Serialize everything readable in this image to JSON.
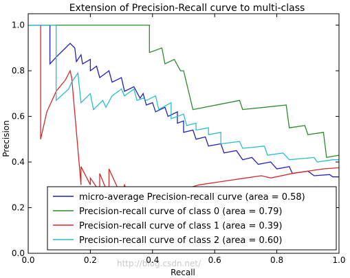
{
  "chart_data": {
    "type": "line",
    "title": "Extension of Precision-Recall curve to multi-class",
    "xlabel": "Recall",
    "ylabel": "Precision",
    "xlim": [
      0.0,
      1.0
    ],
    "ylim": [
      0.0,
      1.05
    ],
    "x_ticks": [
      "0.0",
      "0.2",
      "0.4",
      "0.6",
      "0.8",
      "1.0"
    ],
    "y_ticks": [
      "0.0",
      "0.2",
      "0.4",
      "0.6",
      "0.8",
      "1.0"
    ],
    "grid": false,
    "legend_position": "lower-right",
    "series": [
      {
        "name": "micro-average Precision-recall curve (area = 0.58)",
        "color": "#1f1fbf",
        "points": [
          [
            0.0,
            1.0
          ],
          [
            0.07,
            1.0
          ],
          [
            0.07,
            0.83
          ],
          [
            0.09,
            0.86
          ],
          [
            0.12,
            0.9
          ],
          [
            0.135,
            0.92
          ],
          [
            0.15,
            0.9
          ],
          [
            0.155,
            0.84
          ],
          [
            0.17,
            0.87
          ],
          [
            0.175,
            0.83
          ],
          [
            0.2,
            0.85
          ],
          [
            0.2,
            0.8
          ],
          [
            0.22,
            0.82
          ],
          [
            0.23,
            0.77
          ],
          [
            0.26,
            0.8
          ],
          [
            0.27,
            0.75
          ],
          [
            0.3,
            0.77
          ],
          [
            0.31,
            0.71
          ],
          [
            0.34,
            0.73
          ],
          [
            0.36,
            0.68
          ],
          [
            0.37,
            0.7
          ],
          [
            0.38,
            0.65
          ],
          [
            0.4,
            0.66
          ],
          [
            0.41,
            0.62
          ],
          [
            0.44,
            0.64
          ],
          [
            0.45,
            0.6
          ],
          [
            0.48,
            0.62
          ],
          [
            0.48,
            0.57
          ],
          [
            0.5,
            0.58
          ],
          [
            0.5,
            0.53
          ],
          [
            0.53,
            0.54
          ],
          [
            0.54,
            0.5
          ],
          [
            0.57,
            0.51
          ],
          [
            0.58,
            0.47
          ],
          [
            0.62,
            0.48
          ],
          [
            0.63,
            0.44
          ],
          [
            0.67,
            0.45
          ],
          [
            0.69,
            0.41
          ],
          [
            0.72,
            0.42
          ],
          [
            0.74,
            0.39
          ],
          [
            0.78,
            0.4
          ],
          [
            0.8,
            0.37
          ],
          [
            0.84,
            0.38
          ],
          [
            0.85,
            0.35
          ],
          [
            0.9,
            0.36
          ],
          [
            0.92,
            0.34
          ],
          [
            0.97,
            0.345
          ],
          [
            0.98,
            0.335
          ],
          [
            1.0,
            0.335
          ]
        ]
      },
      {
        "name": "Precision-recall curve of class 0 (area = 0.79)",
        "color": "#2b8c2b",
        "points": [
          [
            0.0,
            1.0
          ],
          [
            0.39,
            1.0
          ],
          [
            0.39,
            0.88
          ],
          [
            0.43,
            0.9
          ],
          [
            0.44,
            0.83
          ],
          [
            0.47,
            0.85
          ],
          [
            0.49,
            0.8
          ],
          [
            0.5,
            0.8
          ],
          [
            0.53,
            0.63
          ],
          [
            0.68,
            0.67
          ],
          [
            0.69,
            0.63
          ],
          [
            0.83,
            0.65
          ],
          [
            0.84,
            0.55
          ],
          [
            0.89,
            0.56
          ],
          [
            0.9,
            0.52
          ],
          [
            0.95,
            0.53
          ],
          [
            0.96,
            0.42
          ],
          [
            1.0,
            0.43
          ]
        ]
      },
      {
        "name": "Precision-recall curve of class 1 (area = 0.39)",
        "color": "#d62728",
        "points": [
          [
            0.04,
            1.0
          ],
          [
            0.04,
            0.5
          ],
          [
            0.06,
            0.62
          ],
          [
            0.09,
            0.71
          ],
          [
            0.12,
            0.76
          ],
          [
            0.135,
            0.8
          ],
          [
            0.14,
            0.77
          ],
          [
            0.17,
            0.3
          ],
          [
            0.17,
            0.38
          ],
          [
            0.2,
            0.3
          ],
          [
            0.2,
            0.33
          ],
          [
            0.23,
            0.27
          ],
          [
            0.23,
            0.35
          ],
          [
            0.26,
            0.25
          ],
          [
            0.26,
            0.37
          ],
          [
            0.3,
            0.25
          ],
          [
            0.31,
            0.3
          ],
          [
            0.33,
            0.23
          ],
          [
            0.35,
            0.23
          ],
          [
            0.4,
            0.26
          ],
          [
            0.45,
            0.25
          ],
          [
            0.5,
            0.28
          ],
          [
            0.55,
            0.3
          ],
          [
            0.6,
            0.31
          ],
          [
            0.65,
            0.32
          ],
          [
            0.7,
            0.33
          ],
          [
            0.75,
            0.34
          ],
          [
            0.78,
            0.33
          ],
          [
            0.85,
            0.35
          ],
          [
            0.95,
            0.37
          ],
          [
            1.0,
            0.375
          ]
        ]
      },
      {
        "name": "Precision-recall curve of class 2 (area = 0.60)",
        "color": "#27c0c8",
        "points": [
          [
            0.0,
            1.0
          ],
          [
            0.09,
            1.0
          ],
          [
            0.09,
            0.67
          ],
          [
            0.13,
            0.72
          ],
          [
            0.14,
            0.75
          ],
          [
            0.16,
            0.79
          ],
          [
            0.17,
            0.66
          ],
          [
            0.2,
            0.7
          ],
          [
            0.21,
            0.63
          ],
          [
            0.24,
            0.67
          ],
          [
            0.25,
            0.64
          ],
          [
            0.27,
            0.69
          ],
          [
            0.3,
            0.72
          ],
          [
            0.31,
            0.69
          ],
          [
            0.34,
            0.72
          ],
          [
            0.35,
            0.67
          ],
          [
            0.37,
            0.68
          ],
          [
            0.38,
            0.67
          ],
          [
            0.41,
            0.69
          ],
          [
            0.42,
            0.63
          ],
          [
            0.46,
            0.66
          ],
          [
            0.46,
            0.59
          ],
          [
            0.5,
            0.61
          ],
          [
            0.51,
            0.56
          ],
          [
            0.54,
            0.57
          ],
          [
            0.54,
            0.54
          ],
          [
            0.58,
            0.55
          ],
          [
            0.58,
            0.52
          ],
          [
            0.62,
            0.53
          ],
          [
            0.62,
            0.48
          ],
          [
            0.68,
            0.49
          ],
          [
            0.69,
            0.46
          ],
          [
            0.76,
            0.47
          ],
          [
            0.77,
            0.43
          ],
          [
            0.82,
            0.44
          ],
          [
            0.84,
            0.41
          ],
          [
            0.92,
            0.42
          ],
          [
            0.93,
            0.4
          ],
          [
            0.98,
            0.41
          ],
          [
            1.0,
            0.41
          ]
        ]
      }
    ]
  },
  "watermark": "http://blog.csdn.net/"
}
